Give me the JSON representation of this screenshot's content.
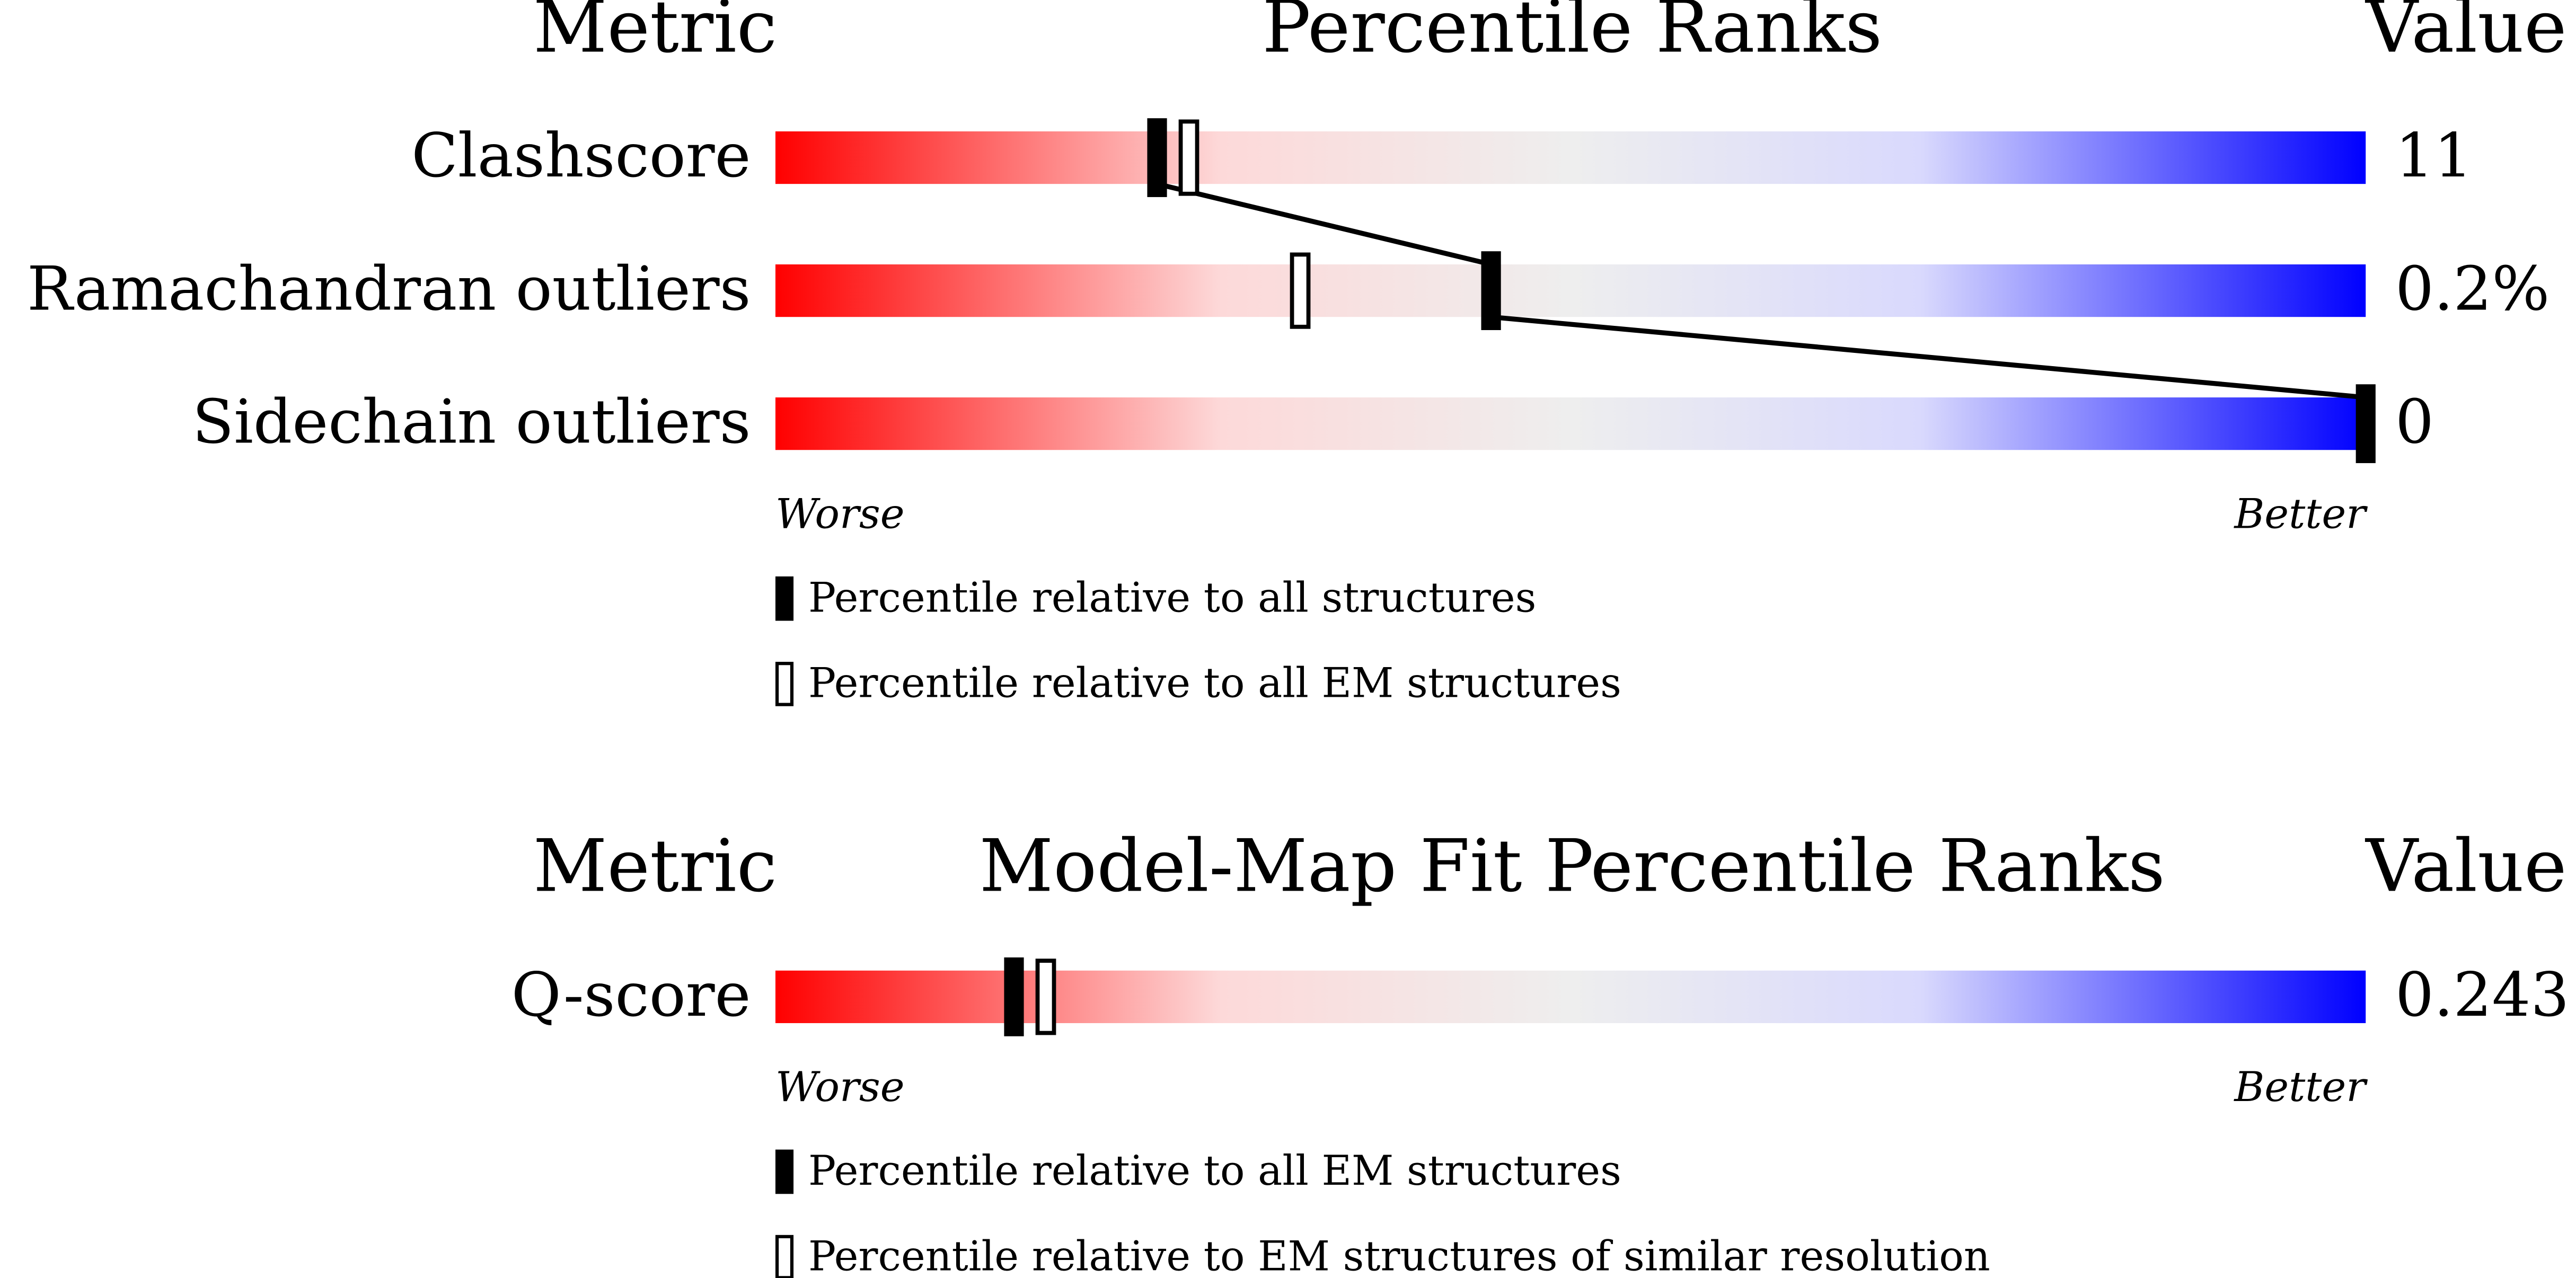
{
  "chart_data": [
    {
      "type": "percentile",
      "metric_header": "Metric",
      "title": "Percentile Ranks",
      "value_header": "Value",
      "categories": [
        "Clashscore",
        "Ramachandran outliers",
        "Sidechain outliers"
      ],
      "value_labels": [
        "11",
        "0.2%",
        "0"
      ],
      "series": [
        {
          "name": "Percentile relative to all structures",
          "values": [
            24,
            45,
            100
          ]
        },
        {
          "name": "Percentile relative to all EM structures",
          "values": [
            26,
            33,
            null
          ]
        }
      ],
      "xlim": [
        0,
        100
      ],
      "worse": "Worse",
      "better": "Better"
    },
    {
      "type": "percentile",
      "metric_header": "Metric",
      "title": "Model-Map Fit Percentile Ranks",
      "value_header": "Value",
      "categories": [
        "Q-score"
      ],
      "value_labels": [
        "0.243"
      ],
      "series": [
        {
          "name": "Percentile relative to all EM structures",
          "values": [
            15
          ]
        },
        {
          "name": "Percentile relative to EM structures of similar resolution",
          "values": [
            17
          ]
        }
      ],
      "xlim": [
        0,
        100
      ],
      "worse": "Worse",
      "better": "Better"
    }
  ]
}
